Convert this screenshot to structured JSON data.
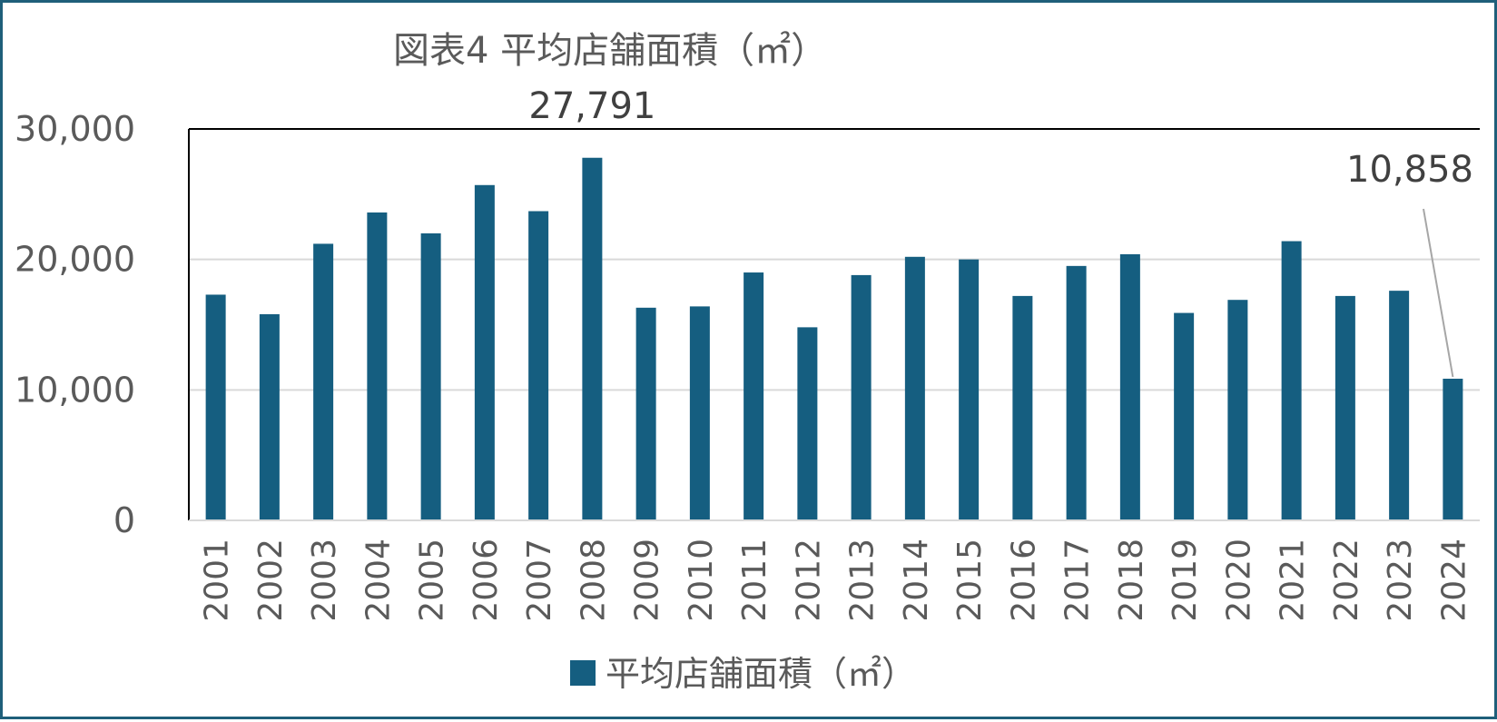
{
  "chart_data": {
    "type": "bar",
    "title": "図表4 平均店舗面積（㎡）",
    "xlabel": "",
    "ylabel": "",
    "categories": [
      "2001",
      "2002",
      "2003",
      "2004",
      "2005",
      "2006",
      "2007",
      "2008",
      "2009",
      "2010",
      "2011",
      "2012",
      "2013",
      "2014",
      "2015",
      "2016",
      "2017",
      "2018",
      "2019",
      "2020",
      "2021",
      "2022",
      "2023",
      "2024"
    ],
    "series": [
      {
        "name": "平均店舗面積（㎡）",
        "values": [
          17300,
          15800,
          21200,
          23600,
          22000,
          25700,
          23700,
          27791,
          16300,
          16400,
          19000,
          14800,
          18800,
          20200,
          20000,
          17200,
          19500,
          20400,
          15900,
          16900,
          21400,
          17200,
          17600,
          10858
        ]
      }
    ],
    "ylim": [
      0,
      30000
    ],
    "yticks": [
      0,
      10000,
      20000,
      30000
    ],
    "ytick_labels": [
      "0",
      "10,000",
      "20,000",
      "30,000"
    ],
    "data_labels": [
      {
        "category": "2008",
        "text": "27,791"
      },
      {
        "category": "2024",
        "text": "10,858"
      }
    ],
    "grid": true,
    "legend_position": "bottom",
    "colors": {
      "bar": "#155e80",
      "grid": "#d9d9d9",
      "axis": "#000000",
      "leader": "#a6a6a6"
    }
  }
}
